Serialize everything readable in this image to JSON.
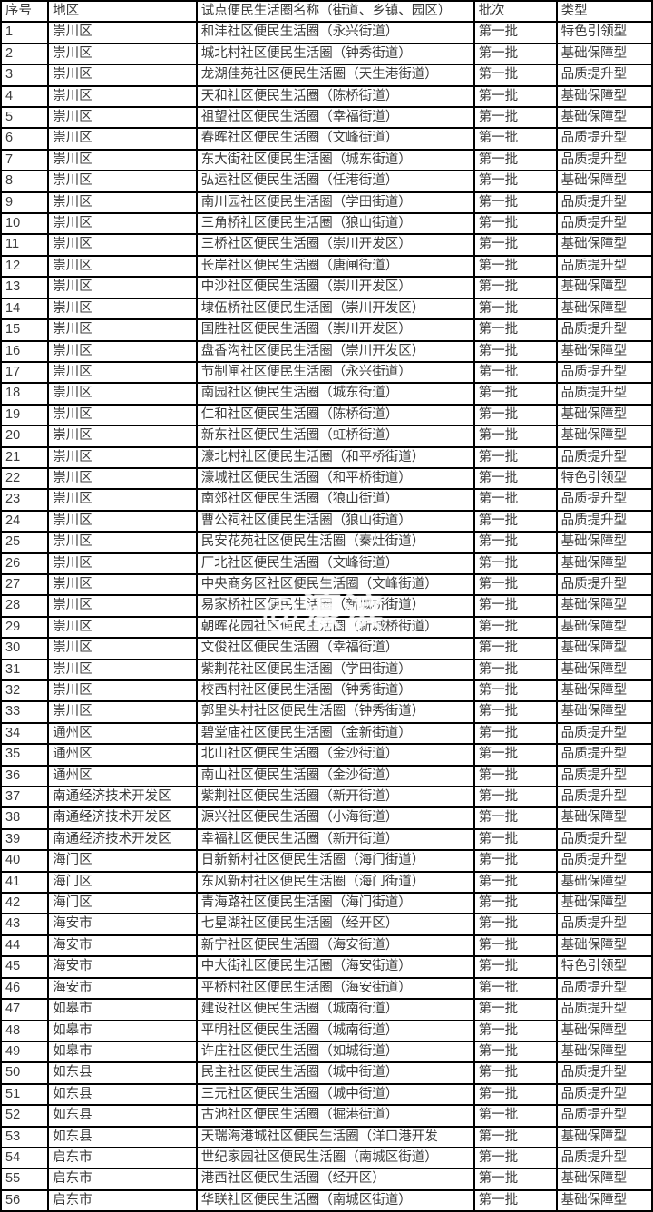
{
  "table": {
    "columns": [
      {
        "key": "index",
        "label": "序号"
      },
      {
        "key": "region",
        "label": "地区"
      },
      {
        "key": "name",
        "label": "试点便民生活圈名称（街道、乡镇、园区）"
      },
      {
        "key": "batch",
        "label": "批次"
      },
      {
        "key": "type",
        "label": "类型"
      }
    ],
    "rows": [
      {
        "index": "1",
        "region": "崇川区",
        "name": "和沣社区便民生活圈（永兴街道）",
        "batch": "第一批",
        "type": "特色引领型"
      },
      {
        "index": "2",
        "region": "崇川区",
        "name": "城北村社区便民生活圈（钟秀街道）",
        "batch": "第一批",
        "type": "基础保障型"
      },
      {
        "index": "3",
        "region": "崇川区",
        "name": "龙湖佳苑社区便民生活圈（天生港街道）",
        "batch": "第一批",
        "type": "品质提升型"
      },
      {
        "index": "4",
        "region": "崇川区",
        "name": "天和社区便民生活圈（陈桥街道）",
        "batch": "第一批",
        "type": "基础保障型"
      },
      {
        "index": "5",
        "region": "崇川区",
        "name": "祖望社区便民生活圈（幸福街道）",
        "batch": "第一批",
        "type": "基础保障型"
      },
      {
        "index": "6",
        "region": "崇川区",
        "name": "春晖社区便民生活圈（文峰街道）",
        "batch": "第一批",
        "type": "品质提升型"
      },
      {
        "index": "7",
        "region": "崇川区",
        "name": "东大街社区便民生活圈（城东街道）",
        "batch": "第一批",
        "type": "品质提升型"
      },
      {
        "index": "8",
        "region": "崇川区",
        "name": "弘运社区便民生活圈（任港街道）",
        "batch": "第一批",
        "type": "基础保障型"
      },
      {
        "index": "9",
        "region": "崇川区",
        "name": "南川园社区便民生活圈（学田街道）",
        "batch": "第一批",
        "type": "品质提升型"
      },
      {
        "index": "10",
        "region": "崇川区",
        "name": "三角桥社区便民生活圈（狼山街道）",
        "batch": "第一批",
        "type": "品质提升型"
      },
      {
        "index": "11",
        "region": "崇川区",
        "name": "三桥社区便民生活圈（崇川开发区）",
        "batch": "第一批",
        "type": "基础保障型"
      },
      {
        "index": "12",
        "region": "崇川区",
        "name": "长岸社区便民生活圈（唐闸街道）",
        "batch": "第一批",
        "type": "品质提升型"
      },
      {
        "index": "13",
        "region": "崇川区",
        "name": "中沙社区便民生活圈（崇川开发区）",
        "batch": "第一批",
        "type": "基础保障型"
      },
      {
        "index": "14",
        "region": "崇川区",
        "name": "埭伍桥社区便民生活圈（崇川开发区）",
        "batch": "第一批",
        "type": "基础保障型"
      },
      {
        "index": "15",
        "region": "崇川区",
        "name": "国胜社区便民生活圈（崇川开发区）",
        "batch": "第一批",
        "type": "品质提升型"
      },
      {
        "index": "16",
        "region": "崇川区",
        "name": "盘香沟社区便民生活圈（崇川开发区）",
        "batch": "第一批",
        "type": "基础保障型"
      },
      {
        "index": "17",
        "region": "崇川区",
        "name": "节制闸社区便民生活圈（永兴街道）",
        "batch": "第一批",
        "type": "品质提升型"
      },
      {
        "index": "18",
        "region": "崇川区",
        "name": "南园社区便民生活圈（城东街道）",
        "batch": "第一批",
        "type": "品质提升型"
      },
      {
        "index": "19",
        "region": "崇川区",
        "name": "仁和社区便民生活圈（陈桥街道）",
        "batch": "第一批",
        "type": "基础保障型"
      },
      {
        "index": "20",
        "region": "崇川区",
        "name": "新东社区便民生活圈（虹桥街道）",
        "batch": "第一批",
        "type": "基础保障型"
      },
      {
        "index": "21",
        "region": "崇川区",
        "name": "濠北村社区便民生活圈（和平桥街道）",
        "batch": "第一批",
        "type": "品质提升型"
      },
      {
        "index": "22",
        "region": "崇川区",
        "name": "濠城社区便民生活圈（和平桥街道）",
        "batch": "第一批",
        "type": "特色引领型"
      },
      {
        "index": "23",
        "region": "崇川区",
        "name": "南郊社区便民生活圈（狼山街道）",
        "batch": "第一批",
        "type": "品质提升型"
      },
      {
        "index": "24",
        "region": "崇川区",
        "name": "曹公祠社区便民生活圈（狼山街道）",
        "batch": "第一批",
        "type": "品质提升型"
      },
      {
        "index": "25",
        "region": "崇川区",
        "name": "民安花苑社区便民生活圈（秦灶街道）",
        "batch": "第一批",
        "type": "基础保障型"
      },
      {
        "index": "26",
        "region": "崇川区",
        "name": "厂北社区便民生活圈（文峰街道）",
        "batch": "第一批",
        "type": "基础保障型"
      },
      {
        "index": "27",
        "region": "崇川区",
        "name": "中央商务区社区便民生活圈（文峰街道）",
        "batch": "第一批",
        "type": "品质提升型"
      },
      {
        "index": "28",
        "region": "崇川区",
        "name": "易家桥社区便民生活圈（新城桥街道）",
        "batch": "第一批",
        "type": "基础保障型"
      },
      {
        "index": "29",
        "region": "崇川区",
        "name": "朝晖花园社区便民生活圈（新城桥街道）",
        "batch": "第一批",
        "type": "基础保障型"
      },
      {
        "index": "30",
        "region": "崇川区",
        "name": "文俊社区便民生活圈（幸福街道）",
        "batch": "第一批",
        "type": "基础保障型"
      },
      {
        "index": "31",
        "region": "崇川区",
        "name": "紫荆花社区便民生活圈（学田街道）",
        "batch": "第一批",
        "type": "基础保障型"
      },
      {
        "index": "32",
        "region": "崇川区",
        "name": "校西村社区便民生活圈（钟秀街道）",
        "batch": "第一批",
        "type": "基础保障型"
      },
      {
        "index": "33",
        "region": "崇川区",
        "name": "郭里头村社区便民生活圈（钟秀街道）",
        "batch": "第一批",
        "type": "基础保障型"
      },
      {
        "index": "34",
        "region": "通州区",
        "name": "碧堂庙社区便民生活圈（金新街道）",
        "batch": "第一批",
        "type": "品质提升型"
      },
      {
        "index": "35",
        "region": "通州区",
        "name": "北山社区便民生活圈（金沙街道）",
        "batch": "第一批",
        "type": "品质提升型"
      },
      {
        "index": "36",
        "region": "通州区",
        "name": "南山社区便民生活圈（金沙街道）",
        "batch": "第一批",
        "type": "品质提升型"
      },
      {
        "index": "37",
        "region": "南通经济技术开发区",
        "name": "紫荆社区便民生活圈（新开街道）",
        "batch": "第一批",
        "type": "品质提升型"
      },
      {
        "index": "38",
        "region": "南通经济技术开发区",
        "name": "源兴社区便民生活圈（小海街道）",
        "batch": "第一批",
        "type": "基础保障型"
      },
      {
        "index": "39",
        "region": "南通经济技术开发区",
        "name": "幸福社区便民生活圈（新开街道）",
        "batch": "第一批",
        "type": "品质提升型"
      },
      {
        "index": "40",
        "region": "海门区",
        "name": "日新新村社区便民生活圈（海门街道）",
        "batch": "第一批",
        "type": "品质提升型"
      },
      {
        "index": "41",
        "region": "海门区",
        "name": "东风新村社区便民生活圈（海门街道）",
        "batch": "第一批",
        "type": "基础保障型"
      },
      {
        "index": "42",
        "region": "海门区",
        "name": "青海路社区便民生活圈（海门街道）",
        "batch": "第一批",
        "type": "基础保障型"
      },
      {
        "index": "43",
        "region": "海安市",
        "name": "七星湖社区便民生活圈（经开区）",
        "batch": "第一批",
        "type": "品质提升型"
      },
      {
        "index": "44",
        "region": "海安市",
        "name": "新宁社区便民生活圈（海安街道）",
        "batch": "第一批",
        "type": "基础保障型"
      },
      {
        "index": "45",
        "region": "海安市",
        "name": "中大街社区便民生活圈（海安街道）",
        "batch": "第一批",
        "type": "特色引领型"
      },
      {
        "index": "46",
        "region": "海安市",
        "name": "平桥村社区便民生活圈（海安街道）",
        "batch": "第一批",
        "type": "品质提升型"
      },
      {
        "index": "47",
        "region": "如皋市",
        "name": "建设社区便民生活圈（城南街道）",
        "batch": "第一批",
        "type": "品质提升型"
      },
      {
        "index": "48",
        "region": "如皋市",
        "name": "平明社区便民生活圈（城南街道）",
        "batch": "第一批",
        "type": "基础保障型"
      },
      {
        "index": "49",
        "region": "如皋市",
        "name": "许庄社区便民生活圈（如城街道）",
        "batch": "第一批",
        "type": "基础保障型"
      },
      {
        "index": "50",
        "region": "如东县",
        "name": "民主社区便民生活圈（城中街道）",
        "batch": "第一批",
        "type": "品质提升型"
      },
      {
        "index": "51",
        "region": "如东县",
        "name": "三元社区便民生活圈（城中街道）",
        "batch": "第一批",
        "type": "品质提升型"
      },
      {
        "index": "52",
        "region": "如东县",
        "name": "古池社区便民生活圈（掘港街道）",
        "batch": "第一批",
        "type": "品质提升型"
      },
      {
        "index": "53",
        "region": "如东县",
        "name": "天瑞海港城社区便民生活圈（洋口港开发",
        "batch": "第一批",
        "type": "基础保障型"
      },
      {
        "index": "54",
        "region": "启东市",
        "name": "世纪家园社区便民生活圈（南城区街道）",
        "batch": "第一批",
        "type": "品质提升型"
      },
      {
        "index": "55",
        "region": "启东市",
        "name": "港西社区便民生活圈（经开区）",
        "batch": "第一批",
        "type": "基础保障型"
      },
      {
        "index": "56",
        "region": "启东市",
        "name": "华联社区便民生活圈（南城区街道）",
        "batch": "第一批",
        "type": "基础保障型"
      }
    ]
  },
  "watermark": {
    "text": "@濠滨"
  },
  "colors": {
    "border": "#000000",
    "text": "#3b3b3b",
    "background": "#ffffff",
    "watermark": "rgba(255,255,255,0.82)"
  }
}
